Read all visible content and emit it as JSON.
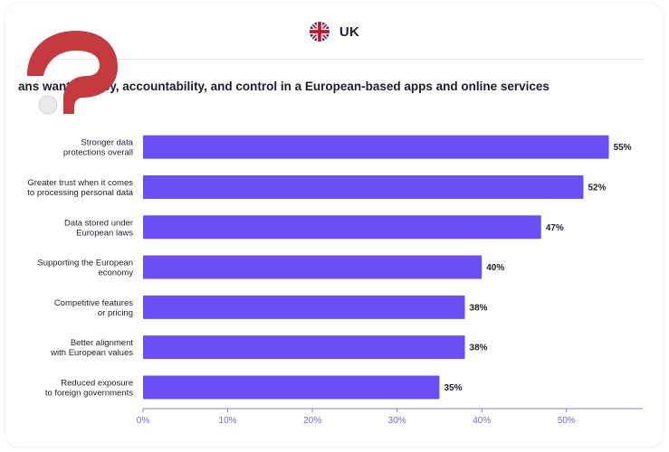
{
  "header": {
    "country": "UK",
    "flag_icon": "uk-flag-icon"
  },
  "colors": {
    "bar": "#6b4ef6",
    "axis": "#8a7be0",
    "tick_text": "#7a66d9",
    "logo": "#c53a3f"
  },
  "chart_data": {
    "type": "bar",
    "orientation": "horizontal",
    "title": "ans want privacy, accountability, and control in a European-based apps and online services",
    "categories": [
      [
        "Stronger data",
        "protections overall"
      ],
      [
        "Greater trust when it comes",
        "to processing personal data"
      ],
      [
        "Data stored under",
        "European laws"
      ],
      [
        "Supporting the European",
        "economy"
      ],
      [
        "Competitive features",
        "or pricing"
      ],
      [
        "Better alignment",
        "with European values"
      ],
      [
        "Reduced exposure",
        "to foreign governments"
      ]
    ],
    "values": [
      55,
      52,
      47,
      40,
      38,
      38,
      35
    ],
    "value_labels": [
      "55%",
      "52%",
      "47%",
      "40%",
      "38%",
      "38%",
      "35%"
    ],
    "xlim": [
      0,
      59
    ],
    "xticks": [
      0,
      10,
      20,
      30,
      40,
      50
    ],
    "xtick_labels": [
      "0%",
      "10%",
      "20%",
      "30%",
      "40%",
      "50%"
    ],
    "grid": false,
    "legend": "none"
  }
}
